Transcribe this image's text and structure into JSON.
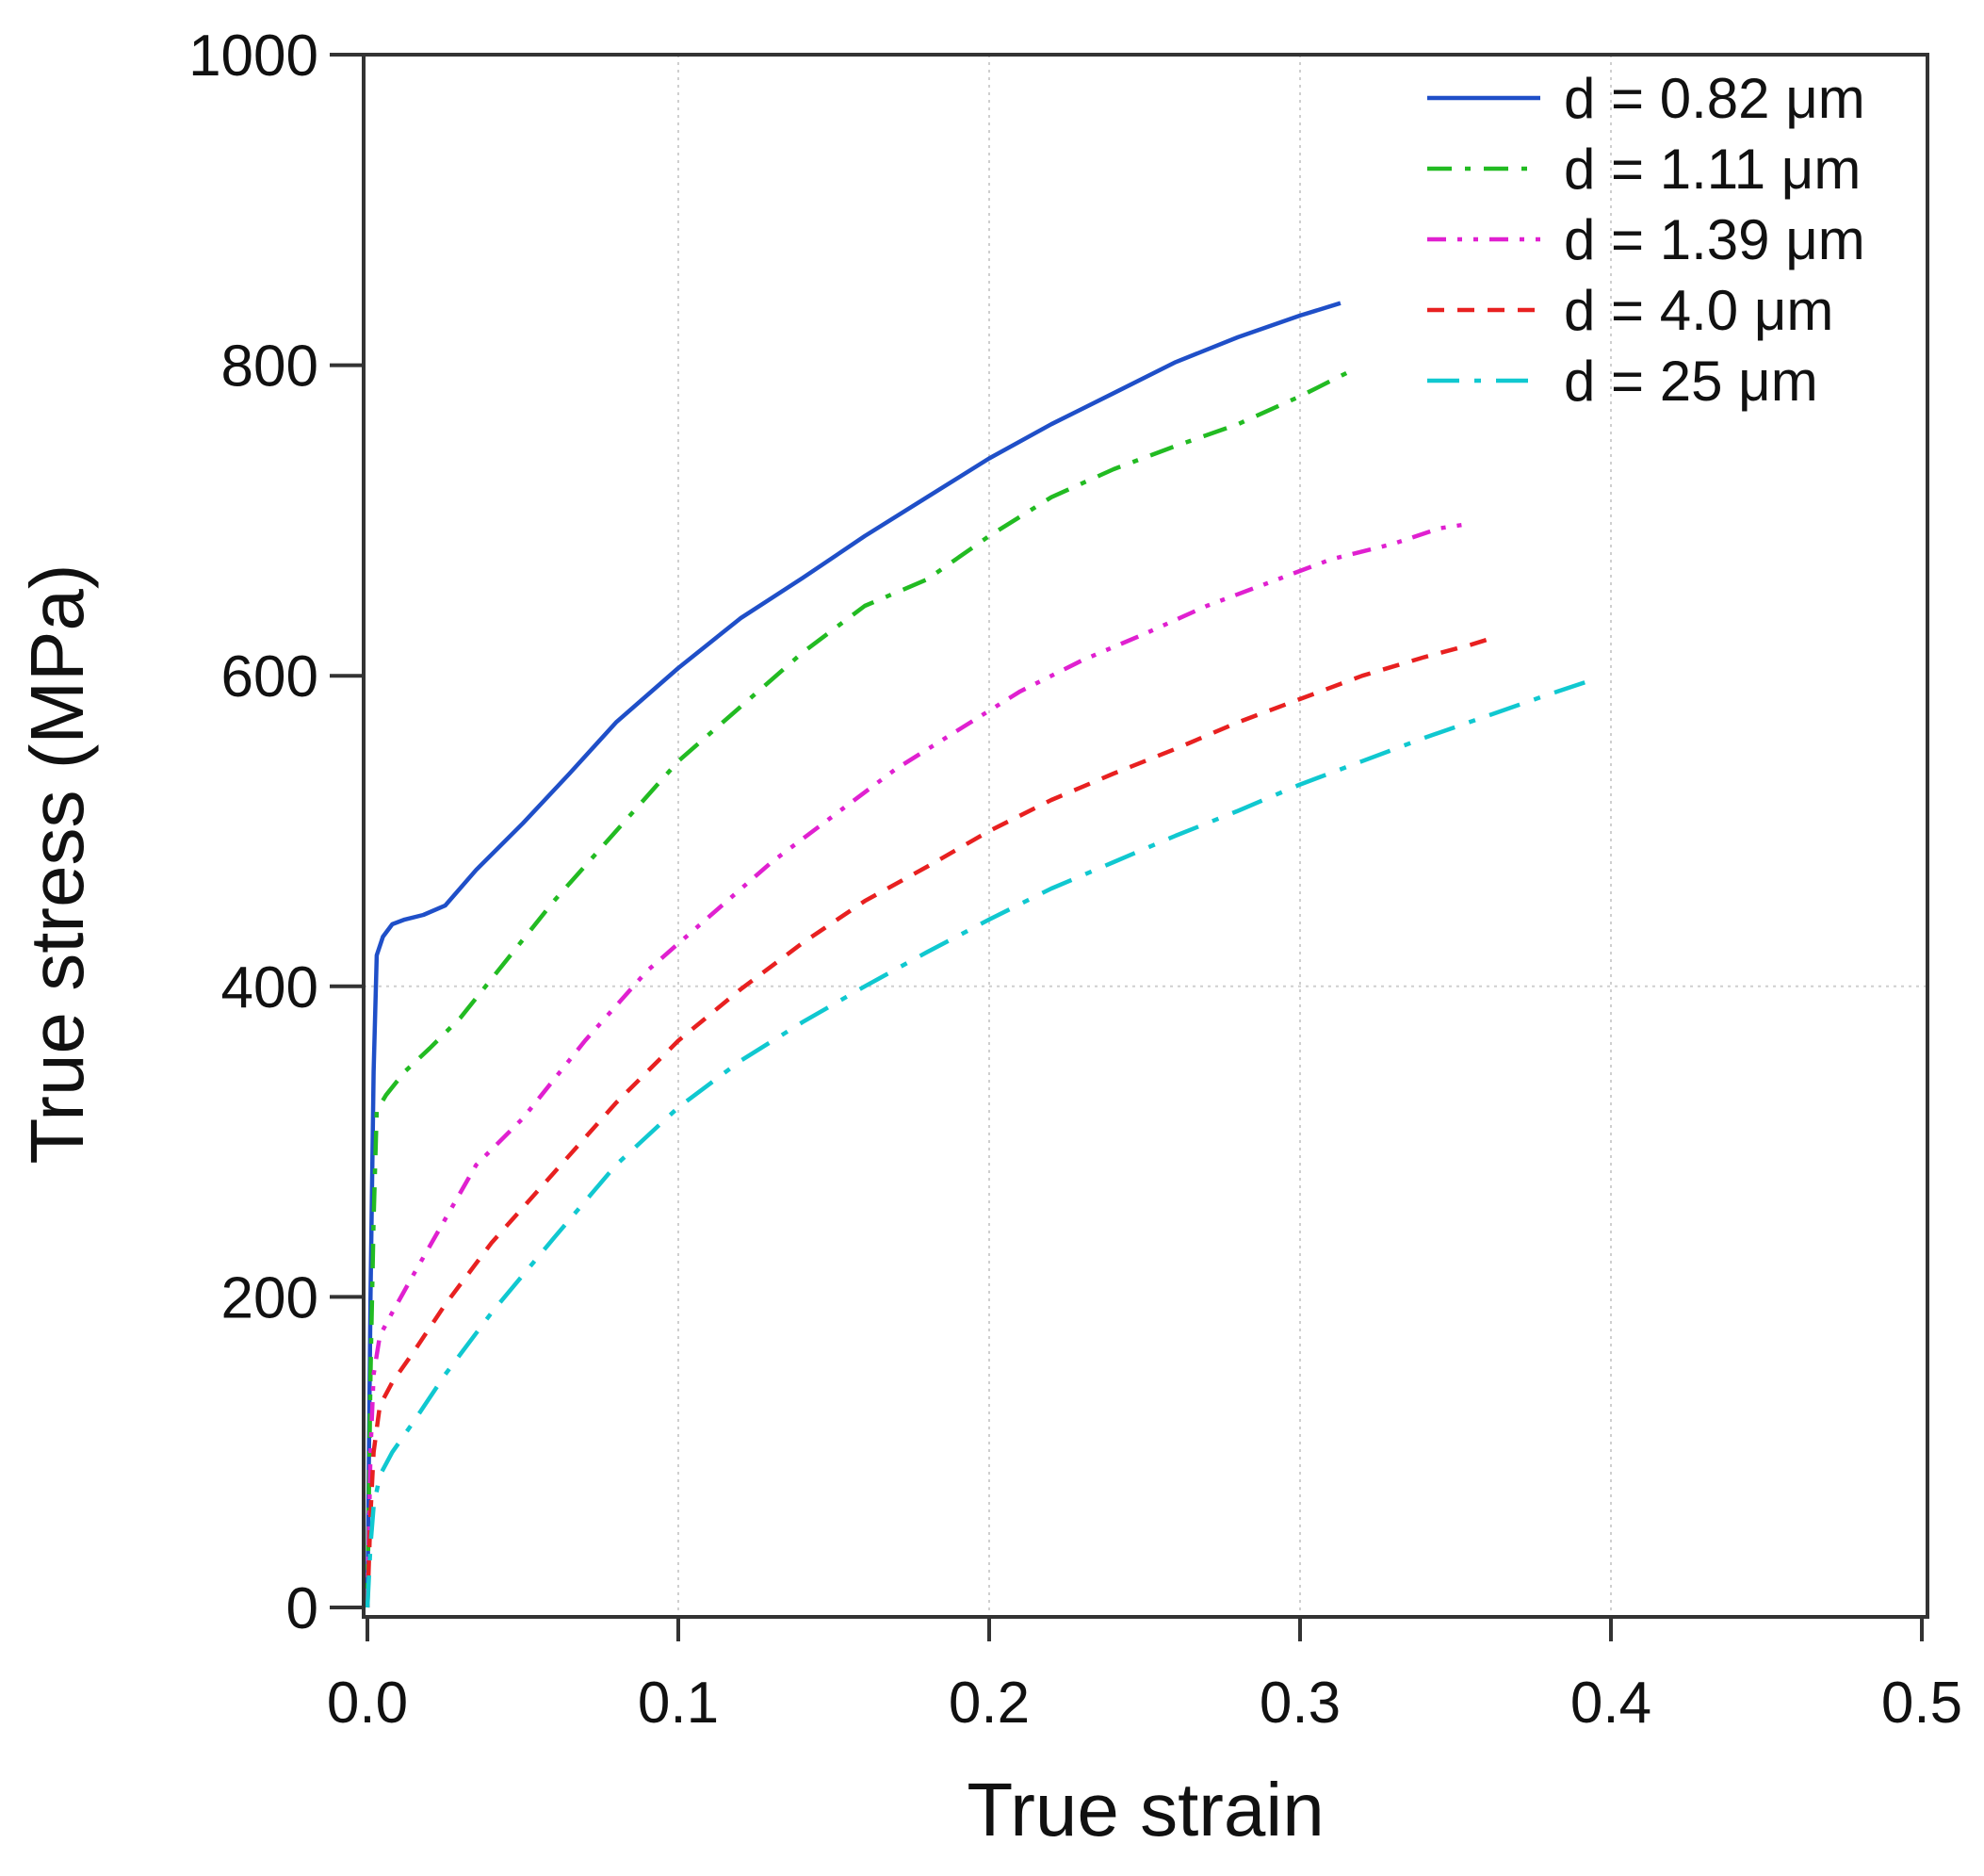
{
  "chart_data": {
    "type": "line",
    "title": "",
    "xlabel": "True strain",
    "ylabel": "True stress (MPa)",
    "xlim": [
      0.0,
      0.5
    ],
    "ylim": [
      0,
      1000
    ],
    "xticks": [
      0.0,
      0.1,
      0.2,
      0.3,
      0.4,
      0.5
    ],
    "xtick_labels": [
      "0.0",
      "0.1",
      "0.2",
      "0.3",
      "0.4",
      "0.5"
    ],
    "yticks": [
      0,
      200,
      400,
      600,
      800,
      1000
    ],
    "ytick_labels": [
      "0",
      "200",
      "400",
      "600",
      "800",
      "1000"
    ],
    "grid": {
      "x": [
        0.1,
        0.2,
        0.3,
        0.4
      ],
      "y": [
        400
      ],
      "style": "dotted"
    },
    "legend_position": "top-right",
    "series": [
      {
        "name": "d = 0.82 μm",
        "color": "#1f4fc8",
        "dash": "solid",
        "x": [
          0.0,
          0.001,
          0.002,
          0.003,
          0.005,
          0.008,
          0.012,
          0.018,
          0.025,
          0.035,
          0.05,
          0.065,
          0.08,
          0.1,
          0.12,
          0.14,
          0.16,
          0.18,
          0.2,
          0.22,
          0.24,
          0.26,
          0.28,
          0.3,
          0.313
        ],
        "y": [
          0,
          200,
          345,
          420,
          432,
          440,
          443,
          446,
          452,
          475,
          505,
          537,
          570,
          605,
          637,
          663,
          690,
          715,
          740,
          762,
          782,
          802,
          818,
          832,
          840
        ]
      },
      {
        "name": "d = 1.11 μm",
        "color": "#22bb22",
        "dash": "dashdot",
        "x": [
          0.0,
          0.001,
          0.002,
          0.003,
          0.006,
          0.012,
          0.02,
          0.03,
          0.04,
          0.06,
          0.08,
          0.1,
          0.12,
          0.14,
          0.16,
          0.18,
          0.2,
          0.22,
          0.24,
          0.26,
          0.28,
          0.3,
          0.315
        ],
        "y": [
          0,
          150,
          250,
          320,
          330,
          345,
          360,
          380,
          405,
          455,
          500,
          545,
          580,
          615,
          645,
          662,
          690,
          715,
          733,
          748,
          762,
          780,
          795
        ]
      },
      {
        "name": "d = 1.39 μm",
        "color": "#e020d0",
        "dash": "dashdotdot",
        "x": [
          0.0,
          0.001,
          0.002,
          0.004,
          0.008,
          0.015,
          0.025,
          0.035,
          0.05,
          0.07,
          0.09,
          0.11,
          0.13,
          0.15,
          0.17,
          0.19,
          0.21,
          0.23,
          0.25,
          0.27,
          0.29,
          0.31,
          0.33,
          0.345,
          0.355
        ],
        "y": [
          0,
          100,
          150,
          175,
          190,
          215,
          250,
          285,
          315,
          365,
          410,
          445,
          480,
          510,
          540,
          565,
          590,
          610,
          627,
          645,
          660,
          675,
          685,
          695,
          698
        ]
      },
      {
        "name": "d = 4.0 μm",
        "color": "#e82020",
        "dash": "dash",
        "x": [
          0.0,
          0.001,
          0.002,
          0.004,
          0.008,
          0.015,
          0.025,
          0.04,
          0.06,
          0.08,
          0.1,
          0.12,
          0.14,
          0.16,
          0.18,
          0.2,
          0.22,
          0.24,
          0.26,
          0.28,
          0.3,
          0.32,
          0.34,
          0.355,
          0.363
        ],
        "y": [
          0,
          60,
          100,
          130,
          145,
          165,
          195,
          235,
          280,
          325,
          365,
          398,
          428,
          455,
          477,
          500,
          520,
          537,
          553,
          570,
          585,
          600,
          612,
          620,
          625
        ]
      },
      {
        "name": "d = 25 μm",
        "color": "#10c8d0",
        "dash": "longdashdot",
        "x": [
          0.0,
          0.001,
          0.002,
          0.004,
          0.008,
          0.015,
          0.025,
          0.04,
          0.06,
          0.08,
          0.1,
          0.12,
          0.14,
          0.16,
          0.18,
          0.2,
          0.22,
          0.24,
          0.26,
          0.28,
          0.3,
          0.32,
          0.34,
          0.36,
          0.38,
          0.395
        ],
        "y": [
          0,
          40,
          65,
          85,
          100,
          120,
          150,
          190,
          238,
          285,
          322,
          352,
          377,
          400,
          422,
          443,
          463,
          480,
          497,
          513,
          530,
          545,
          560,
          574,
          588,
          598
        ]
      }
    ]
  }
}
